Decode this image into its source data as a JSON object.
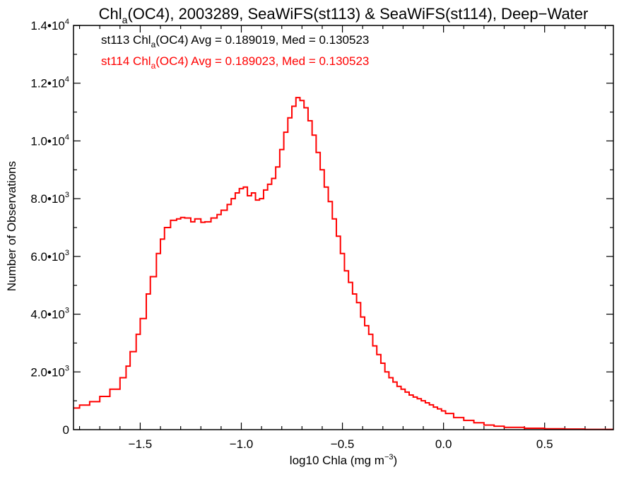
{
  "chart_data": {
    "type": "line",
    "title": {
      "prefix": "Chl",
      "sub": "a",
      "suffix": "(OC4), 2003289, SeaWiFS(st113) & SeaWiFS(st114), Deep−Water"
    },
    "xlabel": {
      "prefix": "log10 Chla (mg m",
      "sup": "−3",
      "suffix": ")"
    },
    "ylabel": "Number of Observations",
    "xlim": [
      -1.83,
      0.84
    ],
    "ylim": [
      0,
      14000
    ],
    "xticks": [
      {
        "value": -1.5,
        "label": "−1.5"
      },
      {
        "value": -1.0,
        "label": "−1.0"
      },
      {
        "value": -0.5,
        "label": "−0.5"
      },
      {
        "value": 0.0,
        "label": "0.0"
      },
      {
        "value": 0.5,
        "label": "0.5"
      }
    ],
    "yticks": [
      {
        "value": 0,
        "mant": "0",
        "exp": ""
      },
      {
        "value": 2000,
        "mant": "2.0•10",
        "exp": "3"
      },
      {
        "value": 4000,
        "mant": "4.0•10",
        "exp": "3"
      },
      {
        "value": 6000,
        "mant": "6.0•10",
        "exp": "3"
      },
      {
        "value": 8000,
        "mant": "8.0•10",
        "exp": "3"
      },
      {
        "value": 10000,
        "mant": "1.0•10",
        "exp": "4"
      },
      {
        "value": 12000,
        "mant": "1.2•10",
        "exp": "4"
      },
      {
        "value": 14000,
        "mant": "1.4•10",
        "exp": "4"
      }
    ],
    "legend": [
      {
        "prefix": "st113 Chl",
        "sub": "a",
        "suffix": "(OC4) Avg = 0.189019, Med = 0.130523",
        "color": "#000000"
      },
      {
        "prefix": "st114 Chl",
        "sub": "a",
        "suffix": "(OC4) Avg = 0.189023, Med = 0.130523",
        "color": "#ff0000"
      }
    ],
    "legend_placement": "top-left",
    "grid": false,
    "series": [
      {
        "step": true,
        "color": "#ff0000",
        "points": [
          [
            -1.83,
            750
          ],
          [
            -1.8,
            850
          ],
          [
            -1.75,
            970
          ],
          [
            -1.7,
            1150
          ],
          [
            -1.65,
            1400
          ],
          [
            -1.6,
            1800
          ],
          [
            -1.57,
            2200
          ],
          [
            -1.55,
            2700
          ],
          [
            -1.52,
            3300
          ],
          [
            -1.5,
            3850
          ],
          [
            -1.47,
            4700
          ],
          [
            -1.45,
            5300
          ],
          [
            -1.42,
            6100
          ],
          [
            -1.4,
            6600
          ],
          [
            -1.38,
            7000
          ],
          [
            -1.35,
            7250
          ],
          [
            -1.32,
            7300
          ],
          [
            -1.3,
            7350
          ],
          [
            -1.28,
            7330
          ],
          [
            -1.25,
            7200
          ],
          [
            -1.23,
            7300
          ],
          [
            -1.2,
            7180
          ],
          [
            -1.18,
            7200
          ],
          [
            -1.15,
            7330
          ],
          [
            -1.12,
            7450
          ],
          [
            -1.1,
            7600
          ],
          [
            -1.07,
            7800
          ],
          [
            -1.05,
            8000
          ],
          [
            -1.03,
            8200
          ],
          [
            -1.01,
            8350
          ],
          [
            -0.99,
            8400
          ],
          [
            -0.97,
            8100
          ],
          [
            -0.95,
            8200
          ],
          [
            -0.93,
            7950
          ],
          [
            -0.91,
            8000
          ],
          [
            -0.89,
            8300
          ],
          [
            -0.87,
            8500
          ],
          [
            -0.85,
            8700
          ],
          [
            -0.83,
            9100
          ],
          [
            -0.81,
            9700
          ],
          [
            -0.79,
            10300
          ],
          [
            -0.77,
            10800
          ],
          [
            -0.75,
            11200
          ],
          [
            -0.73,
            11500
          ],
          [
            -0.71,
            11400
          ],
          [
            -0.69,
            11150
          ],
          [
            -0.67,
            10700
          ],
          [
            -0.65,
            10200
          ],
          [
            -0.63,
            9600
          ],
          [
            -0.61,
            9000
          ],
          [
            -0.59,
            8400
          ],
          [
            -0.57,
            7900
          ],
          [
            -0.55,
            7300
          ],
          [
            -0.53,
            6700
          ],
          [
            -0.51,
            6100
          ],
          [
            -0.49,
            5500
          ],
          [
            -0.47,
            5100
          ],
          [
            -0.45,
            4700
          ],
          [
            -0.43,
            4400
          ],
          [
            -0.41,
            3900
          ],
          [
            -0.39,
            3600
          ],
          [
            -0.37,
            3300
          ],
          [
            -0.35,
            2900
          ],
          [
            -0.33,
            2600
          ],
          [
            -0.31,
            2300
          ],
          [
            -0.29,
            2000
          ],
          [
            -0.27,
            1800
          ],
          [
            -0.25,
            1650
          ],
          [
            -0.23,
            1500
          ],
          [
            -0.21,
            1400
          ],
          [
            -0.19,
            1300
          ],
          [
            -0.17,
            1200
          ],
          [
            -0.15,
            1130
          ],
          [
            -0.13,
            1070
          ],
          [
            -0.11,
            1000
          ],
          [
            -0.09,
            930
          ],
          [
            -0.07,
            860
          ],
          [
            -0.05,
            780
          ],
          [
            -0.03,
            720
          ],
          [
            -0.01,
            650
          ],
          [
            0.01,
            560
          ],
          [
            0.05,
            420
          ],
          [
            0.1,
            320
          ],
          [
            0.15,
            240
          ],
          [
            0.2,
            160
          ],
          [
            0.25,
            120
          ],
          [
            0.3,
            80
          ],
          [
            0.4,
            50
          ],
          [
            0.5,
            30
          ],
          [
            0.6,
            20
          ],
          [
            0.7,
            10
          ],
          [
            0.84,
            10
          ]
        ]
      }
    ]
  }
}
